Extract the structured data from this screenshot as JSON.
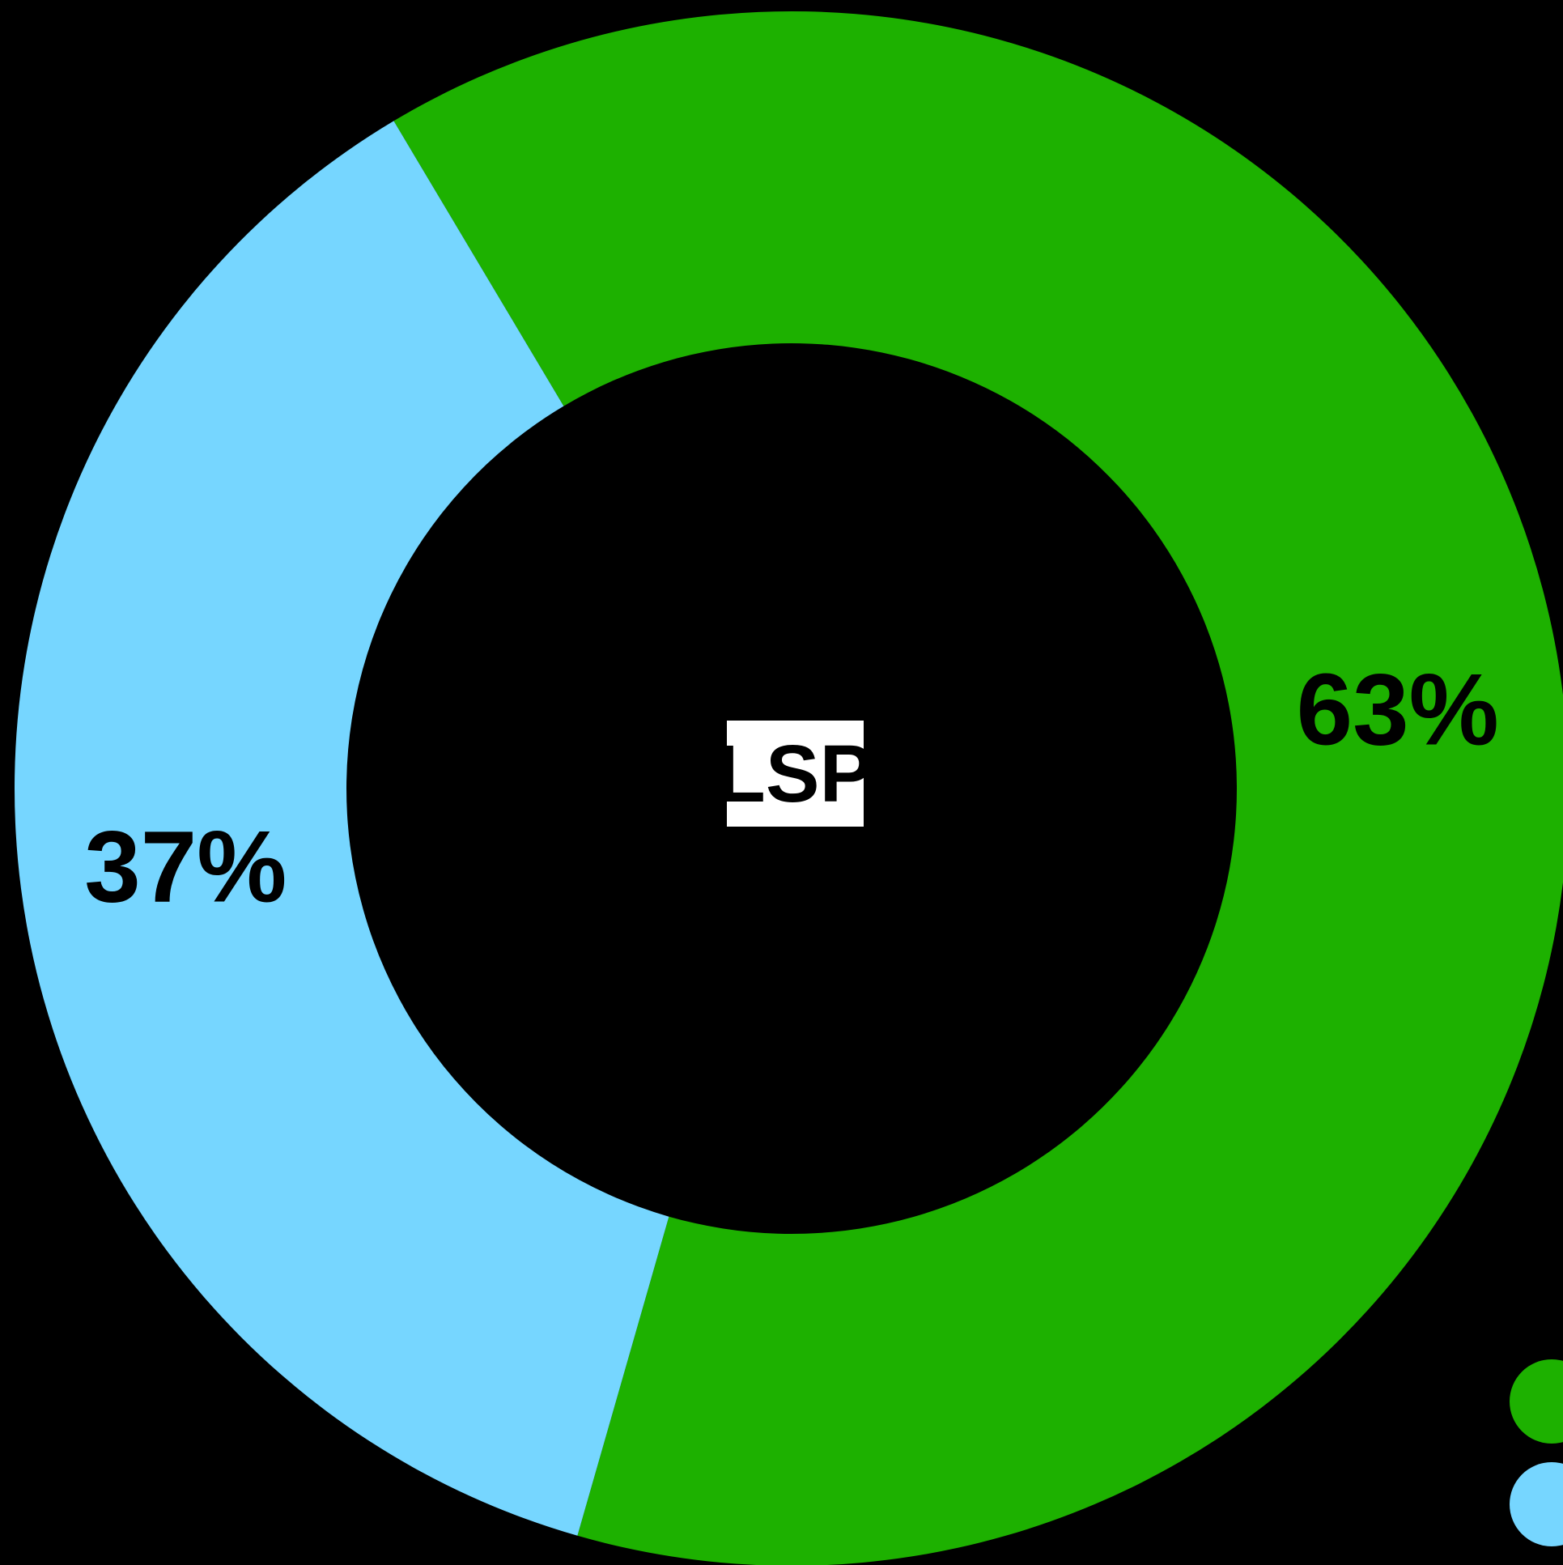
{
  "chart_data": {
    "type": "pie",
    "center_label": "LSP",
    "values": [
      63,
      37
    ],
    "value_labels": [
      "63%",
      "37%"
    ],
    "colors": [
      "#1db100",
      "#76d6ff"
    ],
    "legend": "lower-right"
  }
}
